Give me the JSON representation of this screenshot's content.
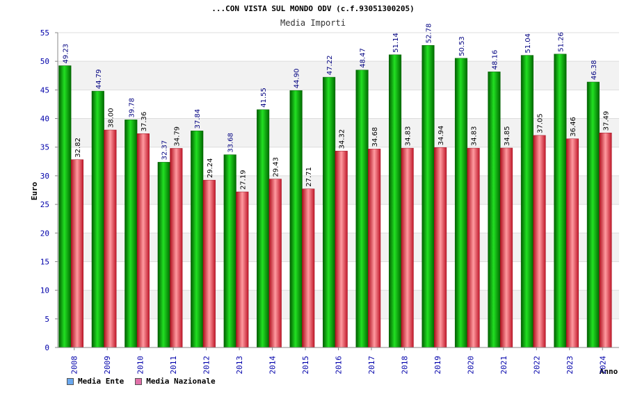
{
  "chart_data": {
    "type": "bar",
    "title": "...CON VISTA SUL MONDO ODV (c.f.93051300205)",
    "subtitle": "Media Importi",
    "ylabel": "Euro",
    "xlabel": "Anno",
    "ylim": [
      0,
      55
    ],
    "yticks": [
      0,
      5,
      10,
      15,
      20,
      25,
      30,
      35,
      40,
      45,
      50,
      55
    ],
    "grid": true,
    "legend_position": "bottom-left",
    "categories": [
      "2008",
      "2009",
      "2010",
      "2011",
      "2012",
      "2013",
      "2014",
      "2015",
      "2016",
      "2017",
      "2018",
      "2019",
      "2020",
      "2021",
      "2022",
      "2023",
      "2024"
    ],
    "series": [
      {
        "name": "Media Ente",
        "legend_color": "#6aa8ef",
        "bar_color": "#00b000",
        "values": [
          49.23,
          44.79,
          39.78,
          32.37,
          37.84,
          33.68,
          41.55,
          44.9,
          47.22,
          48.47,
          51.14,
          52.78,
          50.53,
          48.16,
          51.04,
          51.26,
          46.38
        ],
        "labels": [
          "49.23",
          "44.79",
          "39.78",
          "32.37",
          "37.84",
          "33.68",
          "41.55",
          "44.90",
          "47.22",
          "48.47",
          "51.14",
          "52.78",
          "50.53",
          "48.16",
          "51.04",
          "51.26",
          "46.38"
        ]
      },
      {
        "name": "Media Nazionale",
        "legend_color": "#e070a8",
        "bar_color": "#e03040",
        "values": [
          32.82,
          38.0,
          37.36,
          34.79,
          29.24,
          27.19,
          29.43,
          27.71,
          34.32,
          34.68,
          34.83,
          34.94,
          34.83,
          34.85,
          37.05,
          36.46,
          37.49
        ],
        "labels": [
          "32.82",
          "38.00",
          "37.36",
          "34.79",
          "29.24",
          "27.19",
          "29.43",
          "27.71",
          "34.32",
          "34.68",
          "34.83",
          "34.94",
          "34.83",
          "34.85",
          "37.05",
          "36.46",
          "37.49"
        ]
      }
    ]
  }
}
